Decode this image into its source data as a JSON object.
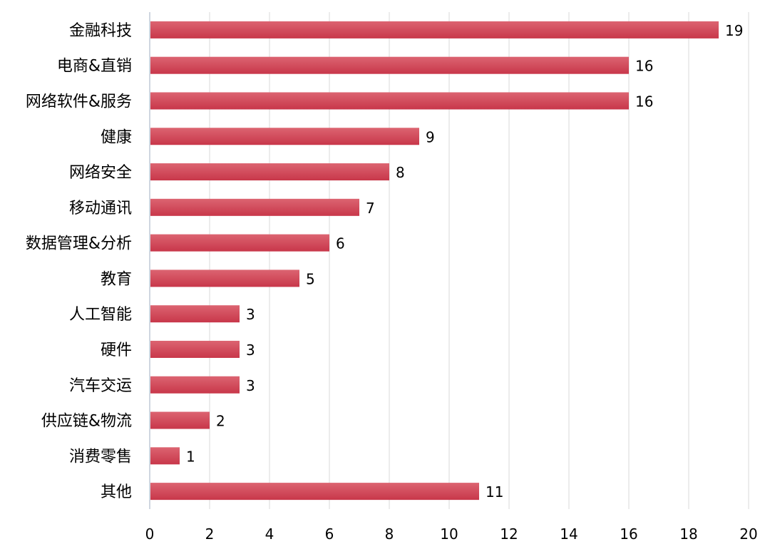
{
  "chart_data": {
    "type": "bar",
    "orientation": "horizontal",
    "title": "",
    "xlabel": "",
    "ylabel": "",
    "categories": [
      "金融科技",
      "电商&直销",
      "网络软件&服务",
      "健康",
      "网络安全",
      "移动通讯",
      "数据管理&分析",
      "教育",
      "人工智能",
      "硬件",
      "汽车交运",
      "供应链&物流",
      "消费零售",
      "其他"
    ],
    "values": [
      19,
      16,
      16,
      9,
      8,
      7,
      6,
      5,
      3,
      3,
      3,
      2,
      1,
      11
    ],
    "xlim": [
      0,
      20
    ],
    "xticks": [
      0,
      2,
      4,
      6,
      8,
      10,
      12,
      14,
      16,
      18,
      20
    ],
    "grid": true,
    "legend": "none",
    "colors": {
      "bar_top": "#dc6471",
      "bar_bottom": "#c8374a",
      "grid": "#d9d9d9",
      "axis": "#bfc8d6"
    }
  }
}
